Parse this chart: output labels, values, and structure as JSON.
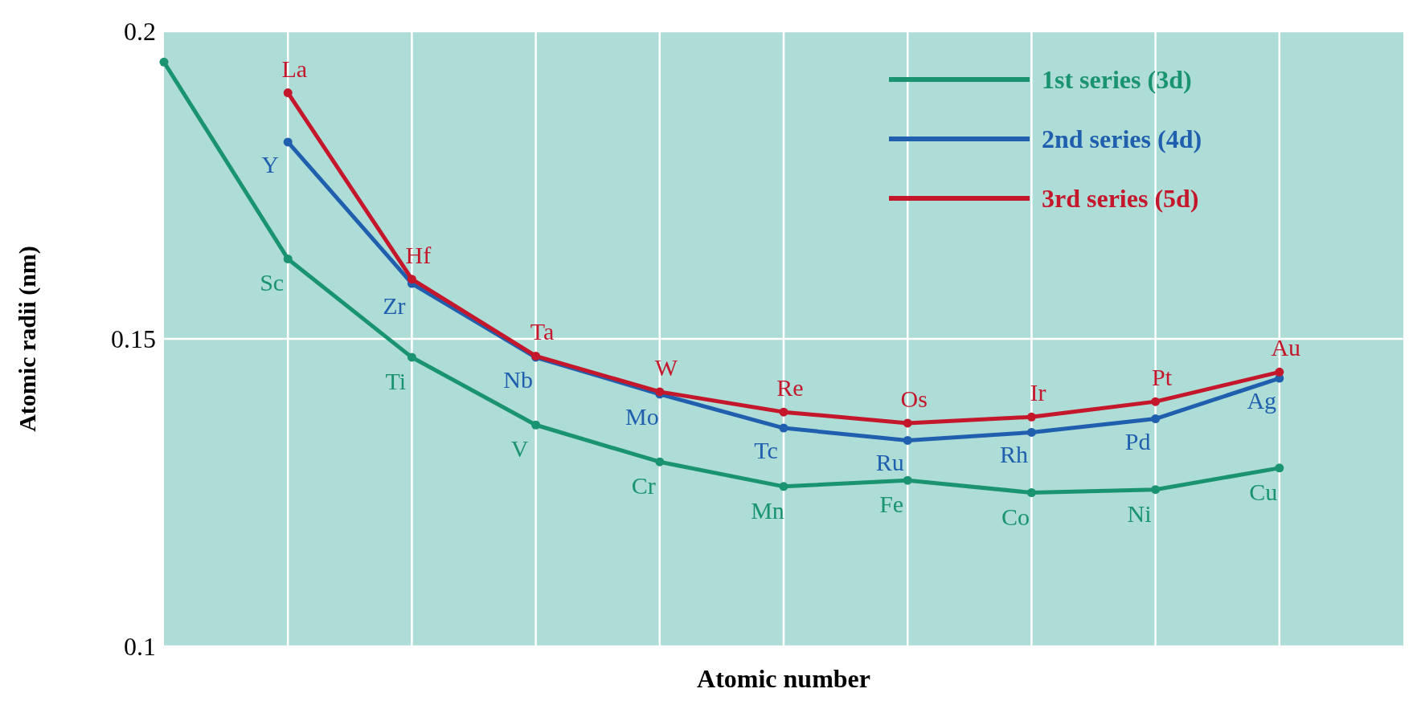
{
  "chart_data": {
    "type": "line",
    "xlabel": "Atomic number",
    "ylabel": "Atomic radii (nm)",
    "categories": [
      null,
      null,
      null,
      null,
      null,
      null,
      null,
      null,
      null,
      null,
      null
    ],
    "ylim": [
      0.1,
      0.2
    ],
    "yticks": [
      0.1,
      0.15,
      0.2
    ],
    "grid": true,
    "tick_labels": "y",
    "legend": "top right",
    "marker": "circle",
    "line_style": "solid",
    "series": [
      {
        "name": "1st series (3d)",
        "color": "#1a9470",
        "values": [
          0.195,
          0.163,
          0.147,
          0.136,
          0.13,
          0.126,
          0.127,
          0.125,
          0.1255,
          0.129,
          null
        ],
        "value_labels": [
          null,
          "Sc",
          "Ti",
          "V",
          "Cr",
          "Mn",
          "Fe",
          "Co",
          "Ni",
          "Cu",
          null
        ]
      },
      {
        "name": "2nd series (4d)",
        "color": "#1f5fae",
        "values": [
          null,
          0.182,
          0.159,
          0.147,
          0.141,
          0.1355,
          0.1335,
          0.1348,
          0.137,
          0.1436,
          null
        ],
        "value_labels": [
          null,
          "Y",
          "Zr",
          "Nb",
          "Mo",
          "Tc",
          "Ru",
          "Rh",
          "Pd",
          "Ag",
          null
        ]
      },
      {
        "name": "3rd series (5d)",
        "color": "#c4172c",
        "values": [
          null,
          0.19,
          0.1597,
          0.1472,
          0.1414,
          0.1381,
          0.1363,
          0.1373,
          0.1398,
          0.1446,
          null
        ],
        "value_labels": [
          null,
          "La",
          "Hf",
          "Ta",
          "W",
          "Re",
          "Os",
          "Ir",
          "Pt",
          "Au",
          null
        ]
      }
    ]
  }
}
